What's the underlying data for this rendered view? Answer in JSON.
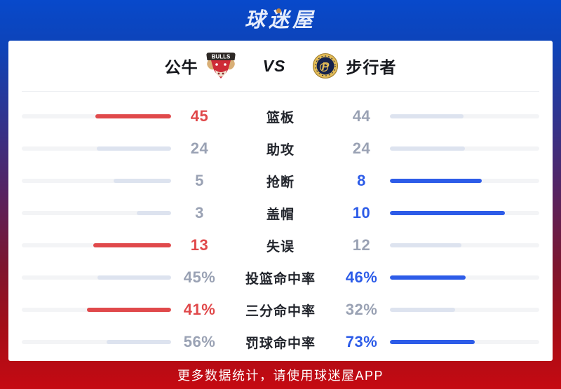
{
  "brand": {
    "logo_text": "球迷屋",
    "logo_dot_icon": "basketball-dot-icon"
  },
  "match_header": {
    "left_team": {
      "name": "公牛",
      "logo_icon": "bulls-logo"
    },
    "vs_label": "VS",
    "right_team": {
      "name": "步行者",
      "logo_icon": "pacers-logo"
    }
  },
  "colors": {
    "left_win": "#e0494b",
    "right_win": "#2d5ce8",
    "neutral_bar": "#dde3ef",
    "bar_track": "#f3f4f6",
    "value_gray": "#9aa2b4",
    "background_top": "#0849cb",
    "background_bottom": "#c50a12"
  },
  "chart_data": {
    "type": "bar",
    "title": "公牛 VS 步行者",
    "categories": [
      "篮板",
      "助攻",
      "抢断",
      "盖帽",
      "失误",
      "投篮命中率",
      "三分命中率",
      "罚球命中率"
    ],
    "series": [
      {
        "name": "公牛",
        "values": [
          45,
          24,
          5,
          3,
          13,
          45,
          41,
          56
        ]
      },
      {
        "name": "步行者",
        "values": [
          44,
          24,
          8,
          10,
          12,
          46,
          32,
          73
        ]
      }
    ],
    "legend_position": "none",
    "grid": false
  },
  "stats": {
    "rows": [
      {
        "label": "篮板",
        "left": {
          "text": "45",
          "value": 45,
          "win": true
        },
        "right": {
          "text": "44",
          "value": 44,
          "win": false
        }
      },
      {
        "label": "助攻",
        "left": {
          "text": "24",
          "value": 24,
          "win": false
        },
        "right": {
          "text": "24",
          "value": 24,
          "win": false
        }
      },
      {
        "label": "抢断",
        "left": {
          "text": "5",
          "value": 5,
          "win": false
        },
        "right": {
          "text": "8",
          "value": 8,
          "win": true
        }
      },
      {
        "label": "盖帽",
        "left": {
          "text": "3",
          "value": 3,
          "win": false
        },
        "right": {
          "text": "10",
          "value": 10,
          "win": true
        }
      },
      {
        "label": "失误",
        "left": {
          "text": "13",
          "value": 13,
          "win": true
        },
        "right": {
          "text": "12",
          "value": 12,
          "win": false
        }
      },
      {
        "label": "投篮命中率",
        "left": {
          "text": "45%",
          "value": 45,
          "win": false
        },
        "right": {
          "text": "46%",
          "value": 46,
          "win": true
        }
      },
      {
        "label": "三分命中率",
        "left": {
          "text": "41%",
          "value": 41,
          "win": true
        },
        "right": {
          "text": "32%",
          "value": 32,
          "win": false
        }
      },
      {
        "label": "罚球命中率",
        "left": {
          "text": "56%",
          "value": 56,
          "win": false
        },
        "right": {
          "text": "73%",
          "value": 73,
          "win": true
        }
      }
    ]
  },
  "footer": {
    "text": "更多数据统计，请使用球迷屋APP"
  }
}
